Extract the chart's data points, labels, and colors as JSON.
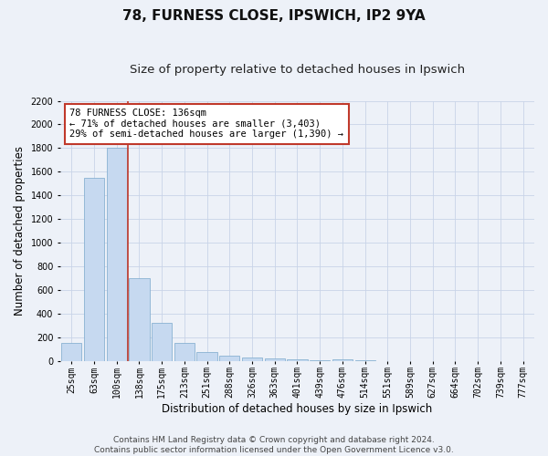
{
  "title1": "78, FURNESS CLOSE, IPSWICH, IP2 9YA",
  "title2": "Size of property relative to detached houses in Ipswich",
  "xlabel": "Distribution of detached houses by size in Ipswich",
  "ylabel": "Number of detached properties",
  "categories": [
    "25sqm",
    "63sqm",
    "100sqm",
    "138sqm",
    "175sqm",
    "213sqm",
    "251sqm",
    "288sqm",
    "326sqm",
    "363sqm",
    "401sqm",
    "439sqm",
    "476sqm",
    "514sqm",
    "551sqm",
    "589sqm",
    "627sqm",
    "664sqm",
    "702sqm",
    "739sqm",
    "777sqm"
  ],
  "values": [
    150,
    1550,
    1800,
    700,
    320,
    155,
    75,
    40,
    25,
    20,
    15,
    8,
    12,
    2,
    1,
    1,
    0,
    0,
    0,
    0,
    0
  ],
  "bar_color": "#c6d9f0",
  "bar_edge_color": "#7aa8cc",
  "highlight_after_index": 2,
  "highlight_line_color": "#c0392b",
  "ylim": [
    0,
    2200
  ],
  "yticks": [
    0,
    200,
    400,
    600,
    800,
    1000,
    1200,
    1400,
    1600,
    1800,
    2000,
    2200
  ],
  "annotation_text": "78 FURNESS CLOSE: 136sqm\n← 71% of detached houses are smaller (3,403)\n29% of semi-detached houses are larger (1,390) →",
  "annotation_box_color": "#ffffff",
  "annotation_box_edge": "#c0392b",
  "footer1": "Contains HM Land Registry data © Crown copyright and database right 2024.",
  "footer2": "Contains public sector information licensed under the Open Government Licence v3.0.",
  "grid_color": "#c8d4e8",
  "bg_color": "#edf1f8",
  "plot_bg_color": "#edf1f8",
  "title1_fontsize": 11,
  "title2_fontsize": 9.5,
  "tick_fontsize": 7,
  "label_fontsize": 8.5,
  "annotation_fontsize": 7.5,
  "footer_fontsize": 6.5
}
